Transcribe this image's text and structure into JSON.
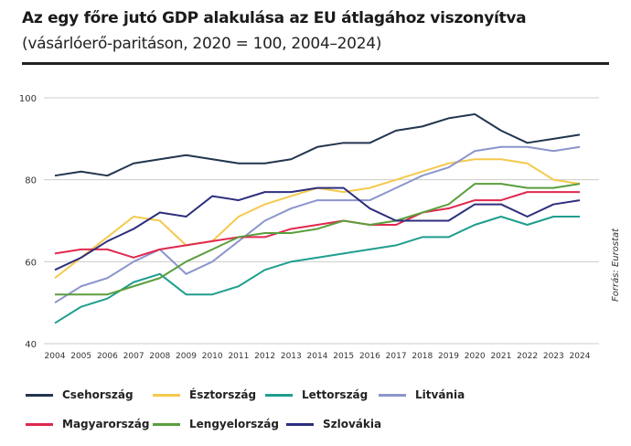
{
  "title": "Az egy főre jutó GDP alakulása az EU átlagához viszonyítva",
  "subtitle": "(vásárlóerő-paritáson, 2020 = 100, 2004–2024)",
  "source": "Forrás: Eurostat",
  "chart_data": {
    "type": "line",
    "title": "Az egy főre jutó GDP alakulása az EU átlagához viszonyítva",
    "subtitle": "(vásárlóerő-paritáson, 2020 = 100, 2004–2024)",
    "x": [
      "2004",
      "2005",
      "2006",
      "2007",
      "2008",
      "2009",
      "2010",
      "2011",
      "2012",
      "2013",
      "2014",
      "2015",
      "2016",
      "2017",
      "2018",
      "2019",
      "2020",
      "2021",
      "2022",
      "2023",
      "2024"
    ],
    "ylim": [
      40,
      100
    ],
    "yticks": [
      "40",
      "60",
      "80",
      "100"
    ],
    "grid": true,
    "legend": "bottom",
    "series": [
      {
        "name": "Csehország",
        "color": "#22354f",
        "values": [
          81,
          82,
          81,
          84,
          85,
          86,
          85,
          84,
          84,
          85,
          88,
          89,
          89,
          92,
          93,
          95,
          96,
          92,
          89,
          90,
          91
        ]
      },
      {
        "name": "Észtország",
        "color": "#f5c94e",
        "values": [
          56,
          61,
          66,
          71,
          70,
          64,
          65,
          71,
          74,
          76,
          78,
          77,
          78,
          80,
          82,
          84,
          85,
          85,
          84,
          80,
          79
        ]
      },
      {
        "name": "Lettország",
        "color": "#1f9e8e",
        "values": [
          45,
          49,
          51,
          55,
          57,
          52,
          52,
          54,
          58,
          60,
          61,
          62,
          63,
          64,
          66,
          66,
          69,
          71,
          69,
          71,
          71
        ]
      },
      {
        "name": "Litvánia",
        "color": "#8c95cc",
        "values": [
          50,
          54,
          56,
          60,
          63,
          57,
          60,
          65,
          70,
          73,
          75,
          75,
          75,
          78,
          81,
          83,
          87,
          88,
          88,
          87,
          88
        ]
      },
      {
        "name": "Magyarország",
        "color": "#e0294f",
        "values": [
          62,
          63,
          63,
          61,
          63,
          64,
          65,
          66,
          66,
          68,
          69,
          70,
          69,
          69,
          72,
          73,
          75,
          75,
          77,
          77,
          77
        ]
      },
      {
        "name": "Lengyelország",
        "color": "#5a9e3c",
        "values": [
          52,
          52,
          52,
          54,
          56,
          60,
          63,
          66,
          67,
          67,
          68,
          70,
          69,
          70,
          72,
          74,
          79,
          79,
          78,
          78,
          79
        ]
      },
      {
        "name": "Szlovákia",
        "color": "#2e2f7e",
        "values": [
          58,
          61,
          65,
          68,
          72,
          71,
          76,
          75,
          77,
          77,
          78,
          78,
          73,
          70,
          70,
          70,
          74,
          74,
          71,
          74,
          75
        ]
      }
    ]
  }
}
